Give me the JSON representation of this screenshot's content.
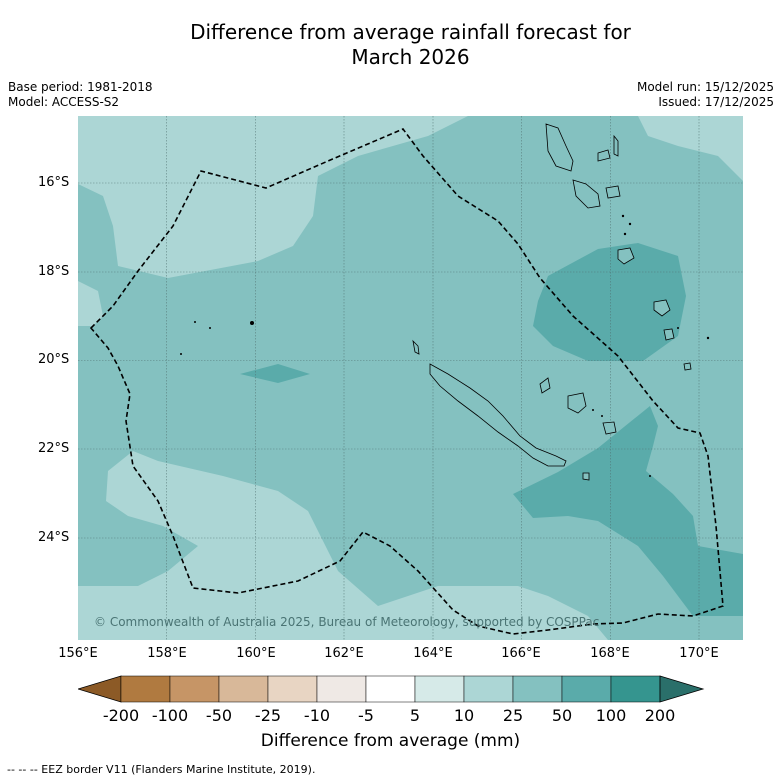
{
  "title_line1": "Difference from average rainfall forecast for",
  "title_line2": "March 2026",
  "base_period": "Base period: 1981-2018",
  "model": "Model: ACCESS-S2",
  "model_run": "Model run: 15/12/2025",
  "issued": "Issued: 17/12/2025",
  "copyright": "© Commonwealth of Australia 2025, Bureau of Meteorology, supported by COSPPac",
  "lon_labels": [
    "156°E",
    "158°E",
    "160°E",
    "162°E",
    "164°E",
    "166°E",
    "168°E",
    "170°E"
  ],
  "lat_labels": [
    "16°S",
    "18°S",
    "20°S",
    "22°S",
    "24°S"
  ],
  "colorbar": {
    "title": "Difference from average (mm)",
    "ticks": [
      "-200",
      "-100",
      "-50",
      "-25",
      "-10",
      "-5",
      "5",
      "10",
      "25",
      "50",
      "100",
      "200"
    ],
    "colors": [
      "#8c5a26",
      "#b07a40",
      "#c69566",
      "#d8b899",
      "#e8d5c3",
      "#efe9e5",
      "#ffffff",
      "#d6eae8",
      "#acd6d5",
      "#84c1c0",
      "#5aabaa",
      "#35958f",
      "#2a6f6a"
    ]
  },
  "footnote": "--  --  -- EEZ border V11 (Flanders Marine Institute, 2019).",
  "map_colors": {
    "c10": "#acd6d5",
    "c25": "#84c1c0",
    "c50": "#5aabaa"
  }
}
